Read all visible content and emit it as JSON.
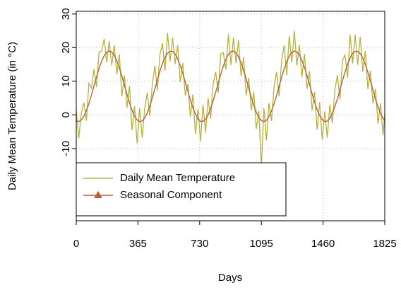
{
  "chart_data": {
    "type": "line",
    "xlabel": "Days",
    "ylabel": "Daily Mean Temperature (in °C)",
    "x": [
      0,
      15,
      30,
      45,
      60,
      75,
      90,
      105,
      120,
      135,
      150,
      165,
      180,
      195,
      210,
      225,
      240,
      255,
      270,
      285,
      300,
      315,
      330,
      345,
      360,
      375,
      390,
      405,
      420,
      435,
      450,
      465,
      480,
      495,
      510,
      525,
      540,
      555,
      570,
      585,
      600,
      615,
      630,
      645,
      660,
      675,
      690,
      705,
      720,
      735,
      750,
      765,
      780,
      795,
      810,
      825,
      840,
      855,
      870,
      885,
      900,
      915,
      930,
      945,
      960,
      975,
      990,
      1005,
      1020,
      1035,
      1050,
      1065,
      1080,
      1095,
      1110,
      1125,
      1140,
      1155,
      1170,
      1185,
      1200,
      1215,
      1230,
      1245,
      1260,
      1275,
      1290,
      1305,
      1320,
      1335,
      1350,
      1365,
      1380,
      1395,
      1410,
      1425,
      1440,
      1455,
      1470,
      1485,
      1500,
      1515,
      1530,
      1545,
      1560,
      1575,
      1590,
      1605,
      1620,
      1635,
      1650,
      1665,
      1680,
      1695,
      1710,
      1725,
      1740,
      1755,
      1770,
      1785,
      1800,
      1815,
      1825
    ],
    "series": [
      {
        "name": "Daily Mean Temperature",
        "color": "#b5b33c",
        "values": [
          1.3,
          -7.0,
          0.5,
          3.6,
          -1.7,
          9.4,
          7.9,
          13.6,
          8.3,
          18.8,
          18.9,
          22.6,
          15.6,
          22.0,
          14.7,
          20.7,
          12.1,
          18.0,
          5.5,
          11.8,
          2.1,
          8.6,
          -4.6,
          2.6,
          -8.5,
          2.0,
          -6.8,
          2.1,
          6.6,
          -0.4,
          9.1,
          14.7,
          7.4,
          18.0,
          21.3,
          13.1,
          24.3,
          15.9,
          22.9,
          15.1,
          20.7,
          9.7,
          15.4,
          5.7,
          9.1,
          -0.6,
          6.1,
          -5.8,
          1.8,
          -7.9,
          3.1,
          -5.3,
          5.0,
          -1.1,
          9.2,
          12.8,
          6.5,
          18.1,
          18.5,
          13.5,
          24.0,
          14.8,
          23.0,
          15.4,
          22.2,
          11.5,
          17.2,
          5.7,
          11.0,
          1.3,
          6.9,
          -4.2,
          1.2,
          -15.7,
          2.0,
          -7.6,
          3.5,
          -1.8,
          8.3,
          12.8,
          5.5,
          16.2,
          20.7,
          11.8,
          23.5,
          15.6,
          25.0,
          14.7,
          20.8,
          11.2,
          18.1,
          7.7,
          13.0,
          1.3,
          6.8,
          -4.5,
          3.8,
          -7.4,
          1.0,
          -6.8,
          3.0,
          -2.5,
          7.5,
          11.8,
          4.5,
          16.2,
          17.8,
          11.1,
          23.9,
          15.3,
          23.9,
          14.9,
          23.2,
          12.9,
          19.0,
          7.7,
          13.1,
          3.4,
          7.7,
          -2.6,
          3.4,
          -6.0,
          0.3
        ]
      },
      {
        "name": "Seasonal Component",
        "color": "#b8623a",
        "marker": "triangle",
        "values": [
          -1.7,
          -2.0,
          -1.5,
          -0.4,
          1.3,
          3.4,
          5.9,
          8.6,
          11.3,
          13.8,
          15.9,
          17.6,
          18.6,
          19.0,
          18.7,
          17.7,
          16.1,
          14.0,
          11.5,
          8.8,
          6.1,
          3.6,
          1.4,
          -0.4,
          -1.5,
          -2.0,
          -1.8,
          -0.9,
          0.6,
          2.6,
          5.1,
          7.7,
          10.4,
          13.0,
          15.3,
          17.1,
          18.3,
          18.9,
          18.9,
          18.1,
          16.7,
          14.7,
          12.4,
          9.7,
          7.1,
          4.4,
          2.1,
          0.2,
          -1.2,
          -1.9,
          -1.9,
          -1.3,
          0.0,
          1.9,
          4.2,
          6.8,
          9.5,
          12.1,
          14.5,
          16.5,
          18.0,
          18.8,
          19.0,
          18.4,
          17.2,
          15.5,
          13.2,
          10.7,
          8.0,
          5.3,
          2.9,
          0.8,
          -0.8,
          -1.7,
          -2.0,
          -1.6,
          -0.5,
          1.2,
          3.3,
          5.8,
          8.5,
          11.2,
          13.7,
          15.8,
          17.5,
          18.6,
          19.0,
          18.7,
          17.8,
          16.2,
          14.1,
          11.7,
          9.0,
          6.3,
          3.8,
          1.5,
          -0.2,
          -1.4,
          -2.0,
          -1.8,
          -1.0,
          0.5,
          2.5,
          4.8,
          7.5,
          10.2,
          12.8,
          15.1,
          16.9,
          18.3,
          18.9,
          18.9,
          18.2,
          16.9,
          15.0,
          12.7,
          10.1,
          7.4,
          4.7,
          2.4,
          0.4,
          -1.0,
          -1.7
        ]
      }
    ],
    "xlim": [
      0,
      1825
    ],
    "xticks": [
      0,
      365,
      730,
      1095,
      1460,
      1825
    ],
    "ylim": [
      -31.5,
      30.8
    ],
    "yticks": [
      -10,
      0,
      10,
      20,
      30
    ],
    "grid": true,
    "legend": "bottomleft"
  }
}
